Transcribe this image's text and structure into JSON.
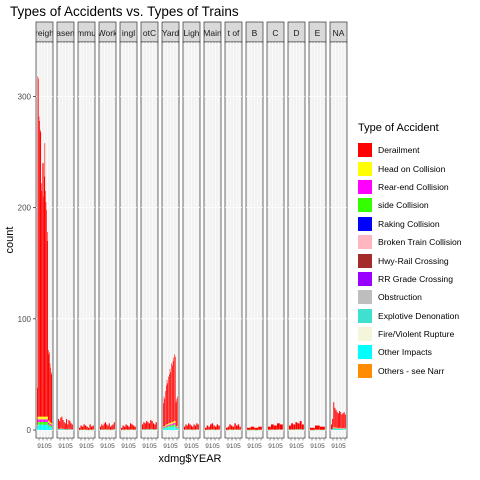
{
  "chart_data": {
    "type": "bar",
    "title": "Types of Accidents vs. Types of Trains",
    "xlabel": "xdmg$YEAR",
    "ylabel": "count",
    "ylim": [
      0,
      340
    ],
    "yticks": [
      0,
      100,
      200,
      300
    ],
    "facets": [
      {
        "label": "reigh",
        "totals": [
          38,
          318,
          316,
          282,
          278,
          270,
          268,
          222,
          215,
          240,
          210,
          240,
          228,
          258,
          215,
          205,
          198,
          170,
          178,
          72,
          68,
          70,
          60,
          56,
          52,
          50
        ]
      },
      {
        "label": "asen",
        "totals": [
          10,
          8,
          11,
          12,
          9,
          7,
          6,
          10,
          5,
          9,
          8,
          6,
          5
        ]
      },
      {
        "label": "mmu",
        "totals": [
          2,
          4,
          3,
          5,
          4,
          3,
          2,
          5,
          3,
          4
        ]
      },
      {
        "label": "Work",
        "totals": [
          3,
          5,
          4,
          6,
          7,
          5,
          4,
          6,
          3,
          4,
          5,
          7
        ]
      },
      {
        "label": "ingl",
        "totals": [
          2,
          4,
          3,
          5,
          4,
          3,
          6,
          5,
          4,
          3
        ]
      },
      {
        "label": "otC",
        "totals": [
          5,
          7,
          6,
          8,
          7,
          6,
          9,
          8,
          6,
          5,
          7
        ]
      },
      {
        "label": "Yard",
        "totals": [
          24,
          30,
          28,
          35,
          40,
          45,
          42,
          48,
          50,
          55,
          52,
          60,
          58,
          62,
          65,
          68,
          66,
          25,
          28,
          30
        ]
      },
      {
        "label": "Ligh",
        "totals": [
          3,
          5,
          4,
          6,
          5,
          4,
          3,
          5,
          4,
          6,
          5
        ]
      },
      {
        "label": "Main",
        "totals": [
          2,
          4,
          3,
          5,
          6,
          4,
          3,
          5,
          4
        ]
      },
      {
        "label": "t of",
        "totals": [
          2,
          3,
          5,
          4,
          3,
          6,
          4,
          5,
          3
        ]
      },
      {
        "label": "B",
        "totals": [
          2,
          3,
          2,
          3
        ]
      },
      {
        "label": "C",
        "totals": [
          3,
          5,
          4,
          6,
          5
        ]
      },
      {
        "label": "D",
        "totals": [
          4,
          6,
          5,
          7,
          6,
          8,
          5
        ]
      },
      {
        "label": "E",
        "totals": [
          2,
          4,
          3
        ]
      },
      {
        "label": "NA",
        "totals": [
          5,
          10,
          25,
          20,
          18,
          16,
          15,
          17,
          16,
          14,
          15,
          16,
          14
        ]
      }
    ],
    "facet_xtick_label": "9105",
    "legend_title": "Type of Accident",
    "series": [
      {
        "name": "Derailment",
        "color": "#FF0000"
      },
      {
        "name": "Head on Collision",
        "color": "#FFFF00"
      },
      {
        "name": "Rear-end Collision",
        "color": "#FF00FF"
      },
      {
        "name": "side Collision",
        "color": "#33FF00"
      },
      {
        "name": "Raking Collision",
        "color": "#0000FF"
      },
      {
        "name": "Broken Train Collision",
        "color": "#FFB6C1"
      },
      {
        "name": "Hwy-Rail Crossing",
        "color": "#A52A2A"
      },
      {
        "name": "RR Grade Crossing",
        "color": "#9900FF"
      },
      {
        "name": "Obstruction",
        "color": "#BEBEBE"
      },
      {
        "name": "Explotive Denonation",
        "color": "#40E0D0"
      },
      {
        "name": "Fire/Violent Rupture",
        "color": "#F5F5DC"
      },
      {
        "name": "Other Impacts",
        "color": "#00FFFF"
      },
      {
        "name": "Others - see Narr",
        "color": "#FF8C00"
      }
    ]
  }
}
